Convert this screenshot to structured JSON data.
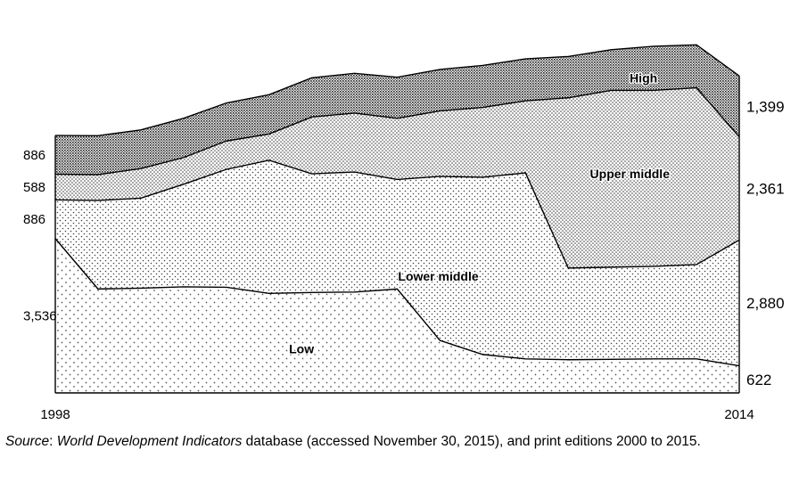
{
  "chart_data": {
    "type": "area",
    "stacked": true,
    "x": [
      1998,
      1999,
      2000,
      2001,
      2002,
      2003,
      2004,
      2005,
      2006,
      2007,
      2008,
      2009,
      2010,
      2011,
      2012,
      2013,
      2014
    ],
    "x_tick_labels": [
      "1998",
      "2014"
    ],
    "series": [
      {
        "name": "Low",
        "values": [
          3536,
          2380,
          2400,
          2430,
          2420,
          2280,
          2300,
          2310,
          2380,
          1200,
          880,
          780,
          760,
          770,
          780,
          780,
          622
        ],
        "pattern": "sparse-dots"
      },
      {
        "name": "Lower middle",
        "values": [
          886,
          2030,
          2060,
          2350,
          2700,
          3050,
          2720,
          2750,
          2510,
          3760,
          4060,
          4260,
          2100,
          2110,
          2120,
          2160,
          2880
        ],
        "pattern": "medium-dots"
      },
      {
        "name": "Upper middle",
        "values": [
          588,
          590,
          680,
          610,
          650,
          600,
          1300,
          1350,
          1400,
          1500,
          1600,
          1650,
          3900,
          4050,
          4030,
          4050,
          2361
        ],
        "pattern": "dense-dots"
      },
      {
        "name": "High",
        "values": [
          886,
          891,
          885,
          900,
          870,
          900,
          898,
          910,
          940,
          949,
          962,
          962,
          946,
          931,
          1010,
          983,
          1399
        ],
        "pattern": "crosshatch"
      }
    ],
    "left_labels": [
      "886",
      "588",
      "886",
      "3,536"
    ],
    "right_labels": [
      "1,399",
      "2,361",
      "2,880",
      "622"
    ],
    "ylim": [
      0,
      9000
    ],
    "grid": false,
    "legend": "none"
  },
  "source": {
    "prefix": "Source",
    "colon": ": ",
    "db_name": "World Development Indicators",
    "rest": " database (accessed November 30, 2015), and print editions 2000 to 2015."
  }
}
